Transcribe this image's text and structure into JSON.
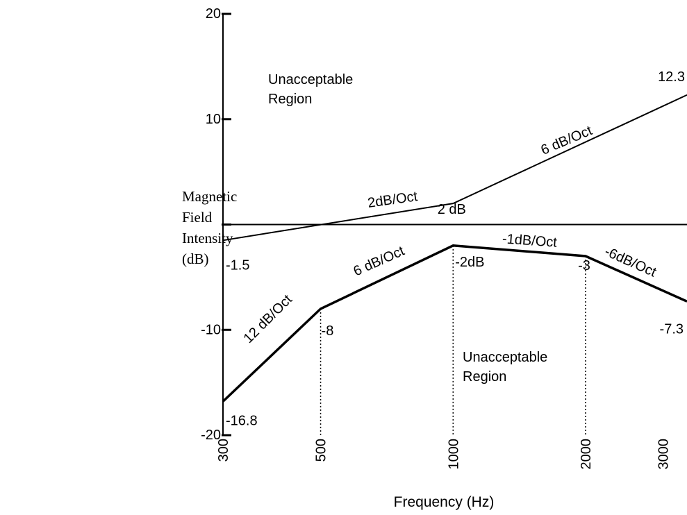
{
  "chart_data": {
    "type": "line",
    "xlabel": "Frequency (Hz)",
    "ylabel_lines": [
      "Magnetic",
      "Field",
      "Intensity",
      "(dB)"
    ],
    "x_scale": "log",
    "xlim": [
      300,
      3400
    ],
    "ylim": [
      -20,
      20
    ],
    "x_ticks": [
      300,
      500,
      1000,
      2000,
      3000
    ],
    "x_tick_labels": [
      "300",
      "500",
      "1000",
      "2000",
      "3000"
    ],
    "y_ticks": [
      -20,
      -10,
      0,
      10,
      20
    ],
    "y_tick_labels": [
      "-20",
      "-10",
      "",
      "10",
      "20"
    ],
    "grid": false,
    "reference_line": {
      "y": 0
    },
    "series": [
      {
        "points": [
          [
            300,
            -1.5
          ],
          [
            1000,
            2
          ],
          [
            3400,
            12.3
          ]
        ],
        "style": "thin"
      },
      {
        "points": [
          [
            300,
            -16.8
          ],
          [
            500,
            -8
          ],
          [
            1000,
            -2
          ],
          [
            2000,
            -3
          ],
          [
            3400,
            -7.3
          ]
        ],
        "style": "thick"
      }
    ],
    "guide_lines_x": [
      500,
      1000,
      2000
    ],
    "point_labels": [
      {
        "text": "12.3",
        "x": 3400,
        "y": 12.3
      },
      {
        "text": "-1.5",
        "x": 300,
        "y": -1.5
      },
      {
        "text": "2 dB",
        "x": 1000,
        "y": 2
      },
      {
        "text": "-16.8",
        "x": 300,
        "y": -16.8
      },
      {
        "text": "-8",
        "x": 500,
        "y": -8
      },
      {
        "text": "-2dB",
        "x": 1000,
        "y": -2
      },
      {
        "text": "-3",
        "x": 2000,
        "y": -3
      },
      {
        "text": "-7.3",
        "x": 3400,
        "y": -7.3
      }
    ],
    "slope_labels": [
      "2dB/Oct",
      "6 dB/Oct",
      "12 dB/Oct",
      "6 dB/Oct",
      "-1dB/Oct",
      "-6dB/Oct"
    ],
    "region_labels": [
      {
        "lines": [
          "Unacceptable",
          "Region"
        ],
        "position": "top-left"
      },
      {
        "lines": [
          "Unacceptable",
          "Region"
        ],
        "position": "bottom-center"
      }
    ]
  }
}
